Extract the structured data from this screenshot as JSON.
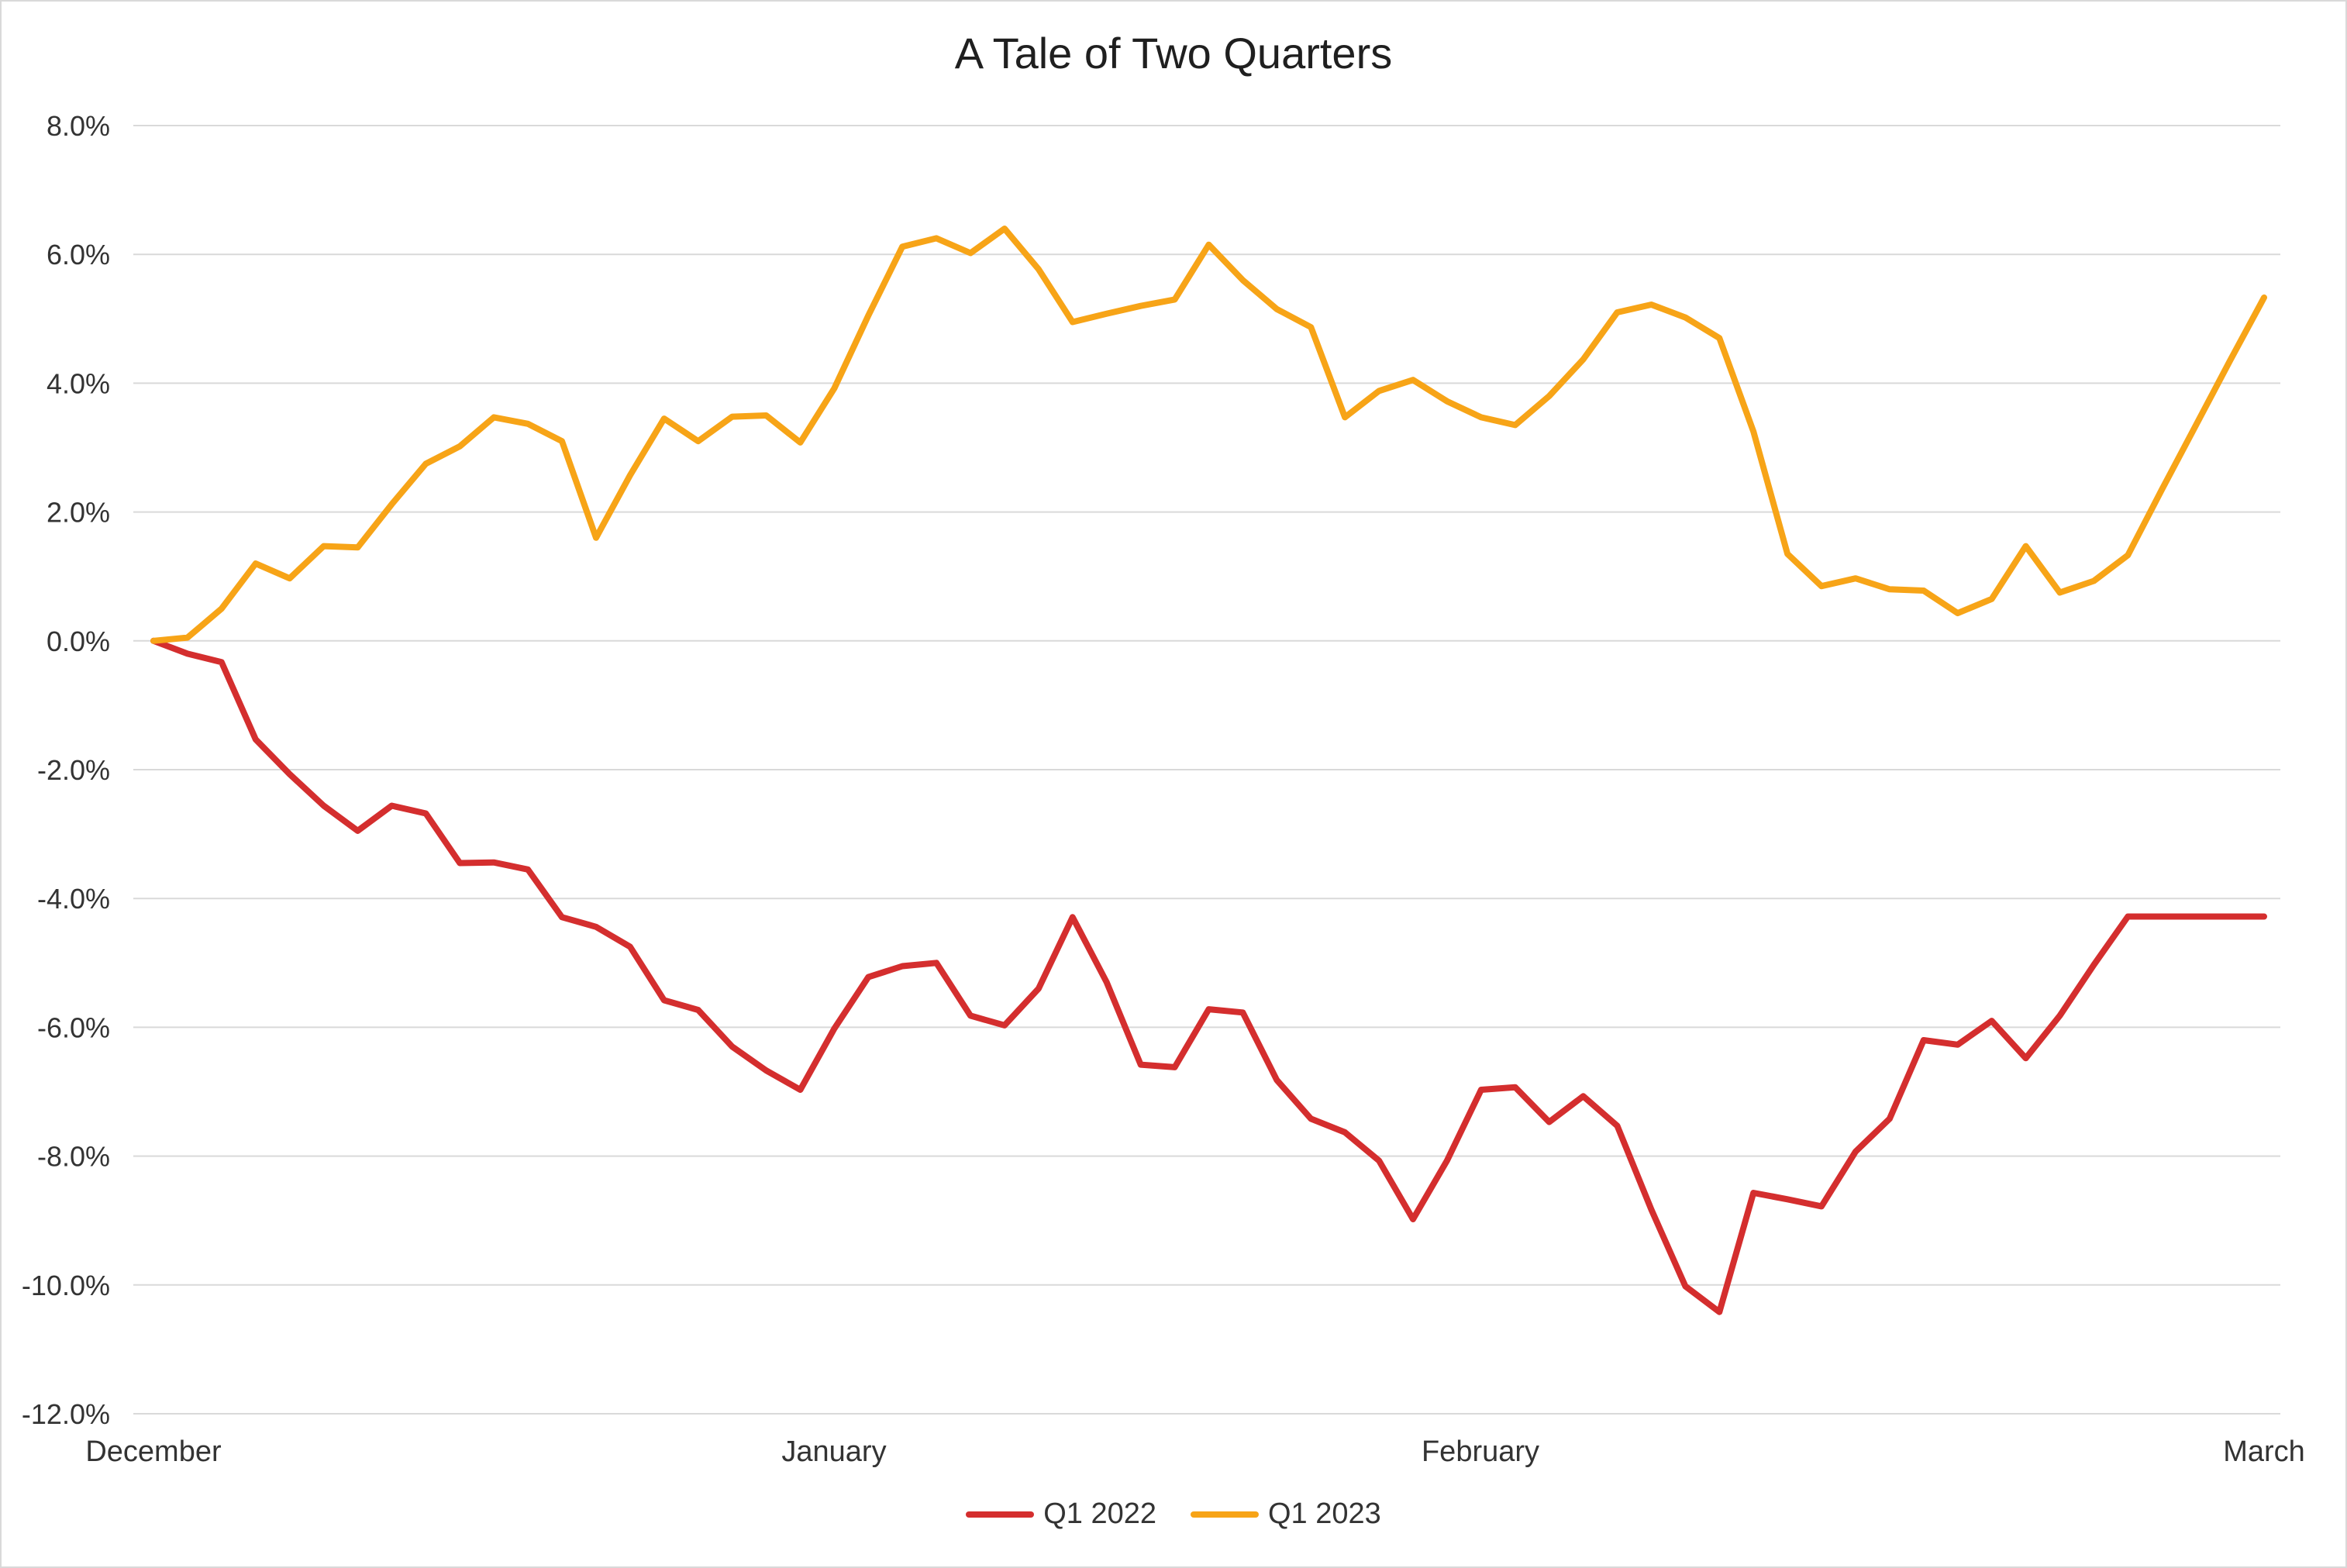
{
  "chart_data": {
    "type": "line",
    "title": "A Tale of Two Quarters",
    "xlabel": "",
    "ylabel": "",
    "x_tick_labels": [
      "December",
      "January",
      "February",
      "March"
    ],
    "y_tick_labels": [
      "8.0%",
      "6.0%",
      "4.0%",
      "2.0%",
      "0.0%",
      "-2.0%",
      "-4.0%",
      "-6.0%",
      "-8.0%",
      "-10.0%",
      "-12.0%"
    ],
    "ylim": [
      -12,
      8
    ],
    "y_unit": "%",
    "grid": true,
    "legend_position": "bottom",
    "series": [
      {
        "name": "Q1 2022",
        "color": "#d42e2e",
        "values": [
          0.0,
          -0.2,
          -0.33,
          -1.53,
          -2.07,
          -2.56,
          -2.95,
          -2.56,
          -2.68,
          -3.45,
          -3.44,
          -3.55,
          -4.29,
          -4.44,
          -4.75,
          -5.58,
          -5.73,
          -6.3,
          -6.67,
          -6.97,
          -6.02,
          -5.22,
          -5.05,
          -5.0,
          -5.82,
          -5.97,
          -5.4,
          -4.29,
          -5.3,
          -6.58,
          -6.62,
          -5.72,
          -5.77,
          -6.82,
          -7.42,
          -7.63,
          -8.07,
          -8.98,
          -8.07,
          -6.97,
          -6.93,
          -7.47,
          -7.07,
          -7.53,
          -8.83,
          -10.02,
          -10.42,
          -8.57,
          -8.67,
          -8.78,
          -7.93,
          -7.42,
          -6.2,
          -6.27,
          -5.9,
          -6.48,
          -5.82,
          -5.03,
          -4.28,
          -4.28,
          -4.28,
          -4.28,
          -4.28
        ]
      },
      {
        "name": "Q1 2023",
        "color": "#f7a417",
        "values": [
          0.0,
          0.05,
          0.5,
          1.2,
          0.97,
          1.47,
          1.45,
          2.12,
          2.75,
          3.02,
          3.47,
          3.37,
          3.1,
          1.6,
          2.57,
          3.45,
          3.1,
          3.48,
          3.5,
          3.08,
          3.92,
          5.05,
          6.12,
          6.25,
          6.02,
          6.4,
          5.77,
          4.95,
          5.08,
          5.2,
          5.3,
          6.15,
          5.6,
          5.15,
          4.87,
          3.47,
          3.88,
          4.05,
          3.72,
          3.47,
          3.35,
          3.8,
          4.37,
          5.1,
          5.22,
          5.02,
          4.7,
          3.25,
          1.35,
          0.85,
          0.97,
          0.8,
          0.78,
          0.43,
          0.65,
          1.47,
          0.75,
          0.93,
          1.33,
          2.35,
          3.35,
          4.35,
          5.33
        ]
      }
    ]
  }
}
